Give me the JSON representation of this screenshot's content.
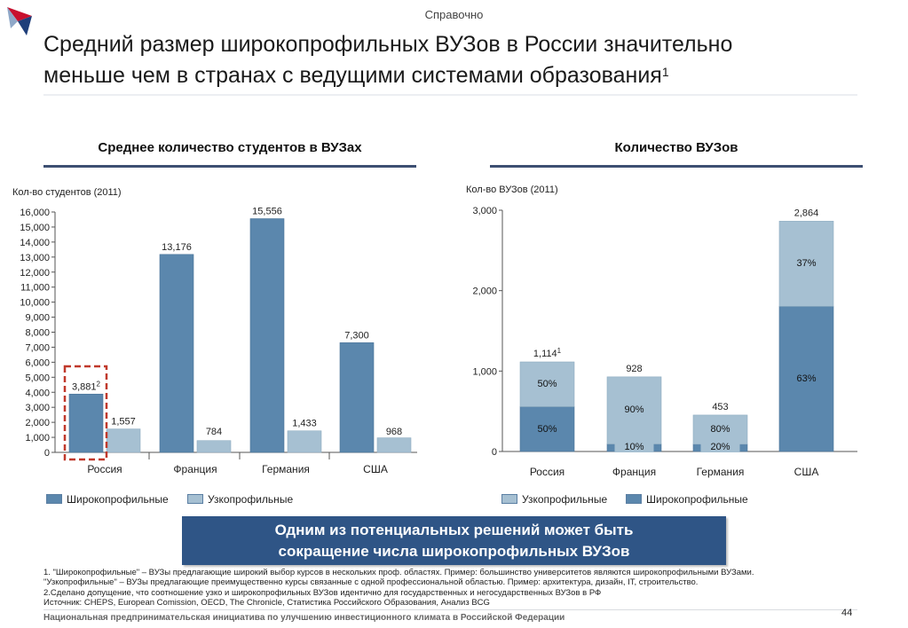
{
  "header": {
    "tag": "Справочно",
    "title_line1": "Средний размер широкопрофильных ВУЗов в России значительно",
    "title_line2": "меньше чем в странах с ведущими системами образования",
    "title_sup": "1"
  },
  "colors": {
    "dark_bar": "#5b87ad",
    "light_bar": "#a6c0d2",
    "accent": "#3d4f72",
    "callout_bg": "#2f5586",
    "highlight": "#c0392b"
  },
  "left_panel": {
    "title": "Среднее количество студентов в ВУЗах",
    "unit_label": "Кол-во студентов (2011)"
  },
  "right_panel": {
    "title": "Количество ВУЗов",
    "unit_label": "Кол-во ВУЗов (2011)"
  },
  "legend_left": [
    {
      "label": "Широкопрофильные",
      "color": "#5b87ad"
    },
    {
      "label": "Узкопрофильные",
      "color": "#a6c0d2"
    }
  ],
  "legend_right": [
    {
      "label": "Узкопрофильные",
      "color": "#a6c0d2"
    },
    {
      "label": "Широкопрофильные",
      "color": "#5b87ad"
    }
  ],
  "callout": {
    "line1": "Одним из потенциальных решений может быть",
    "line2": "сокращение числа широкопрофильных ВУЗов"
  },
  "notes": [
    "1. \"Широкопрофильные\" – ВУЗы предлагающие широкий выбор курсов в нескольких проф. областях. Пример: большинство университетов являются широкопрофильными ВУЗами.",
    "\"Узкопрофильные\" – ВУЗы предлагающие преимущественно курсы связанные с одной профессиональной областью. Пример: архитектура, дизайн, IT, строительство.",
    "2.Сделано допущение, что соотношение узко и широкопрофильных ВУЗов идентично для государственных и негосударственных ВУЗов в РФ",
    "Источник: CHEPS, European Comission, OECD, The Chronicle, Статистика Российского Образования, Анализ BCG"
  ],
  "footer": {
    "text": "Национальная предпринимательская инициатива по улучшению инвестиционного климата в Российской Федерации",
    "page": "44"
  },
  "chart_data": [
    {
      "type": "bar",
      "title": "Среднее количество студентов в ВУЗах",
      "ylabel": "Кол-во студентов (2011)",
      "categories": [
        "Россия",
        "Франция",
        "Германия",
        "США"
      ],
      "series": [
        {
          "name": "Широкопрофильные",
          "values": [
            3881,
            13176,
            15556,
            7300
          ],
          "labels": [
            "3,881",
            "13,176",
            "15,556",
            "7,300"
          ],
          "label_sup": [
            "2",
            "",
            "",
            ""
          ]
        },
        {
          "name": "Узкопрофильные",
          "values": [
            1557,
            784,
            1433,
            968
          ],
          "labels": [
            "1,557",
            "784",
            "1,433",
            "968"
          ],
          "label_sup": [
            "",
            "",
            "",
            ""
          ]
        }
      ],
      "ylim": [
        0,
        16000
      ],
      "yticks": [
        0,
        1000,
        2000,
        3000,
        4000,
        5000,
        6000,
        7000,
        8000,
        9000,
        10000,
        11000,
        12000,
        13000,
        14000,
        15000,
        16000
      ],
      "ytick_labels": [
        "0",
        "1,000",
        "2,000",
        "3,000",
        "4,000",
        "5,000",
        "6,000",
        "7,000",
        "8,000",
        "9,000",
        "10,000",
        "11,000",
        "12,000",
        "13,000",
        "14,000",
        "15,000",
        "16,000"
      ],
      "highlight_category": "Россия",
      "grid": false,
      "legend": "bottom"
    },
    {
      "type": "bar",
      "stacked": true,
      "title": "Количество ВУЗов",
      "ylabel": "Кол-во ВУЗов (2011)",
      "categories": [
        "Россия",
        "Франция",
        "Германия",
        "США"
      ],
      "totals": [
        1114,
        928,
        453,
        2864
      ],
      "total_labels": [
        "1,114",
        "928",
        "453",
        "2,864"
      ],
      "total_sup": [
        "1",
        "",
        "",
        ""
      ],
      "series": [
        {
          "name": "Широкопрофильные",
          "share": [
            0.5,
            0.1,
            0.2,
            0.63
          ],
          "labels": [
            "50%",
            "10%",
            "20%",
            "63%"
          ]
        },
        {
          "name": "Узкопрофильные",
          "share": [
            0.5,
            0.9,
            0.8,
            0.37
          ],
          "labels": [
            "50%",
            "90%",
            "80%",
            "37%"
          ]
        }
      ],
      "ylim": [
        0,
        3000
      ],
      "yticks": [
        0,
        1000,
        2000,
        3000
      ],
      "ytick_labels": [
        "0",
        "1,000",
        "2,000",
        "3,000"
      ],
      "grid": false,
      "legend": "bottom"
    }
  ]
}
